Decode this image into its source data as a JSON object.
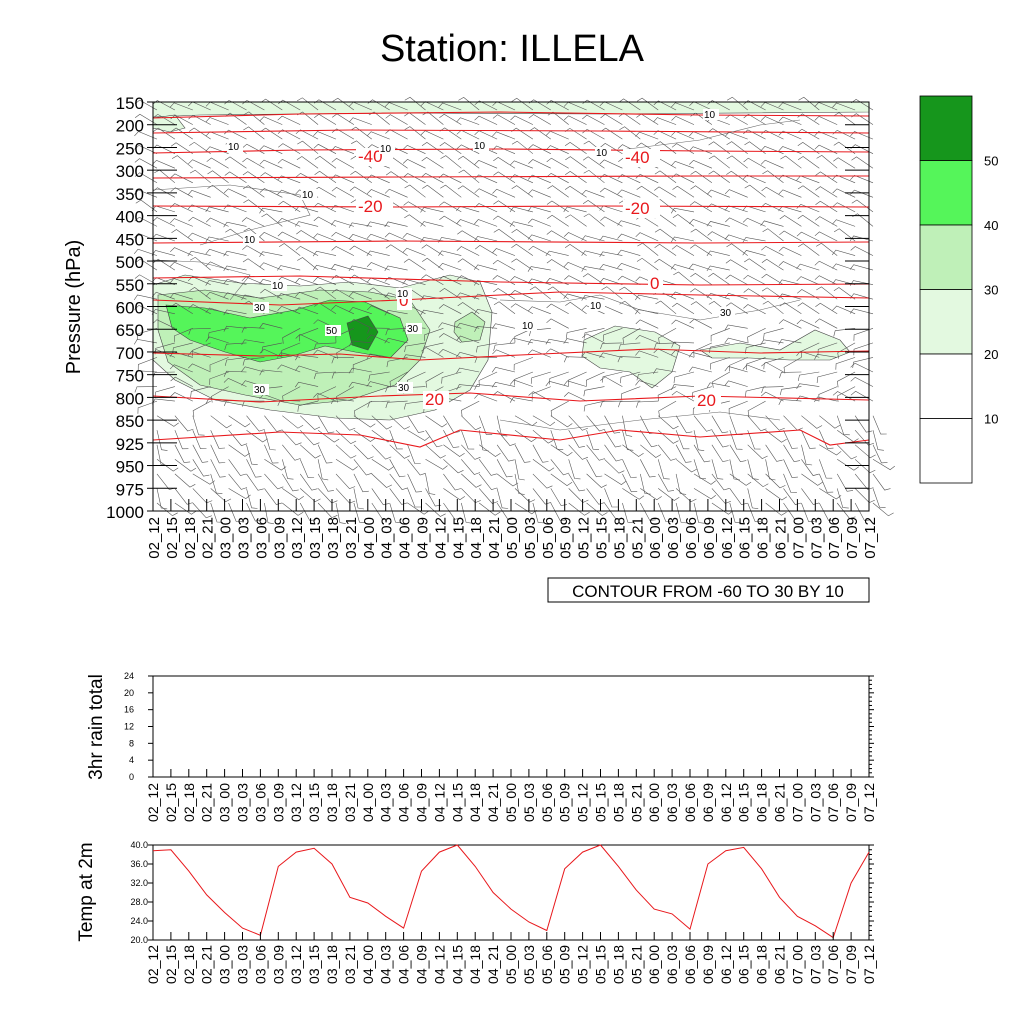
{
  "title": "Station: ILLELA",
  "times": [
    "02_12",
    "02_15",
    "02_18",
    "02_21",
    "03_00",
    "03_03",
    "03_06",
    "03_09",
    "03_12",
    "03_15",
    "03_18",
    "03_21",
    "04_00",
    "04_03",
    "04_06",
    "04_09",
    "04_12",
    "04_15",
    "04_18",
    "04_21",
    "05_00",
    "05_03",
    "05_06",
    "05_09",
    "05_12",
    "05_15",
    "05_18",
    "05_21",
    "06_00",
    "06_03",
    "06_06",
    "06_09",
    "06_12",
    "06_15",
    "06_18",
    "06_21",
    "07_00",
    "07_03",
    "07_06",
    "07_09",
    "07_12"
  ],
  "chart_data": [
    {
      "type": "heatmap",
      "name": "rh-contour-panel",
      "ylabel": "Pressure (hPa)",
      "y_ticks": [
        "150",
        "200",
        "250",
        "300",
        "350",
        "400",
        "450",
        "500",
        "550",
        "600",
        "650",
        "700",
        "750",
        "800",
        "850",
        "925",
        "950",
        "975",
        "1000"
      ],
      "fill_levels": [
        10,
        20,
        30,
        40,
        50
      ],
      "fill_colors": [
        "#ffffff",
        "#ffffff",
        "#e3f9e0",
        "#bff0b8",
        "#55f55a",
        "#16961c"
      ],
      "contour_info": "CONTOUR FROM -60 TO 30 BY 10",
      "temperature_contour_labels": [
        "-40",
        "-40",
        "-20",
        "-20",
        "0",
        "0",
        "20",
        "20"
      ],
      "humidity_contour_labels": [
        "10",
        "10",
        "10",
        "10",
        "10",
        "10",
        "10",
        "10",
        "10",
        "10",
        "10",
        "30",
        "30",
        "50",
        "30",
        "30",
        "30"
      ]
    },
    {
      "type": "bar",
      "name": "rain-panel",
      "ylabel": "3hr rain total",
      "y_ticks": [
        "0",
        "4",
        "8",
        "12",
        "16",
        "20",
        "24"
      ],
      "ylim": [
        0,
        24
      ],
      "values": [
        0,
        0,
        0,
        0,
        0,
        0,
        0,
        0,
        0,
        0,
        0,
        0,
        0,
        0,
        0,
        0,
        0,
        0,
        0,
        0,
        0,
        0,
        0,
        0,
        0,
        0,
        0,
        0,
        0,
        0,
        0,
        0,
        0,
        0,
        0,
        0,
        0,
        0,
        0,
        0,
        0
      ]
    },
    {
      "type": "line",
      "name": "temp-panel",
      "ylabel": "Temp at 2m",
      "y_ticks": [
        "20.0",
        "24.0",
        "28.0",
        "32.0",
        "36.0",
        "40.0"
      ],
      "ylim": [
        20,
        40
      ],
      "color": "#e8181c",
      "values": [
        38.8,
        39.0,
        34.5,
        29.5,
        25.8,
        22.5,
        21.0,
        35.5,
        38.5,
        39.3,
        36.0,
        29.0,
        27.8,
        25.0,
        22.5,
        34.5,
        38.5,
        40.0,
        35.5,
        30.0,
        26.5,
        23.8,
        22.0,
        35.0,
        38.5,
        40.0,
        35.5,
        30.5,
        26.5,
        25.5,
        22.3,
        36.0,
        38.8,
        39.5,
        35.0,
        29.0,
        25.0,
        23.0,
        20.5,
        32.0,
        38.5
      ]
    }
  ]
}
